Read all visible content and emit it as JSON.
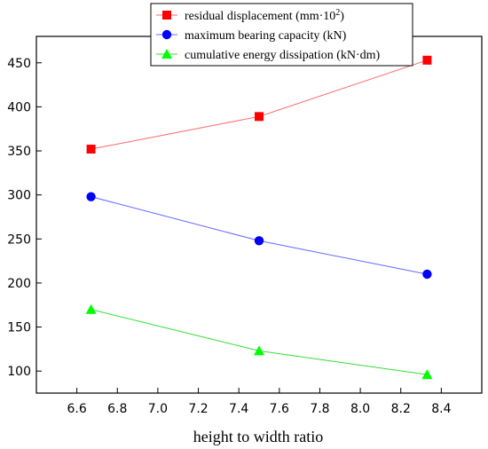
{
  "chart_data": {
    "type": "line",
    "title": "",
    "xlabel": "height to width ratio",
    "ylabel": "",
    "xlim": [
      6.4,
      8.6
    ],
    "ylim": [
      75,
      480
    ],
    "x_ticks": [
      "6.6",
      "6.8",
      "7.0",
      "7.2",
      "7.4",
      "7.6",
      "7.8",
      "8.0",
      "8.2",
      "8.4"
    ],
    "y_ticks": [
      "100",
      "150",
      "200",
      "250",
      "300",
      "350",
      "400",
      "450"
    ],
    "x": [
      6.67,
      7.5,
      8.33
    ],
    "grid": false,
    "legend_position": "top-center",
    "series": [
      {
        "name": "residual displacement (mm·10²)",
        "legend_base": "residual displacement (mm·10",
        "legend_sup": "2",
        "legend_end": ")",
        "values": [
          352,
          389,
          453
        ],
        "color": "#ff0000",
        "line_color": "#ff6666",
        "marker": "square"
      },
      {
        "name": "maximum bearing capacity (kN)",
        "values": [
          298,
          248,
          210
        ],
        "color": "#0000ff",
        "line_color": "#6666ff",
        "marker": "circle"
      },
      {
        "name": "cumulative energy dissipation (kN·dm)",
        "values": [
          170,
          123,
          96
        ],
        "color": "#00ff00",
        "line_color": "#33dd33",
        "marker": "triangle"
      }
    ]
  }
}
